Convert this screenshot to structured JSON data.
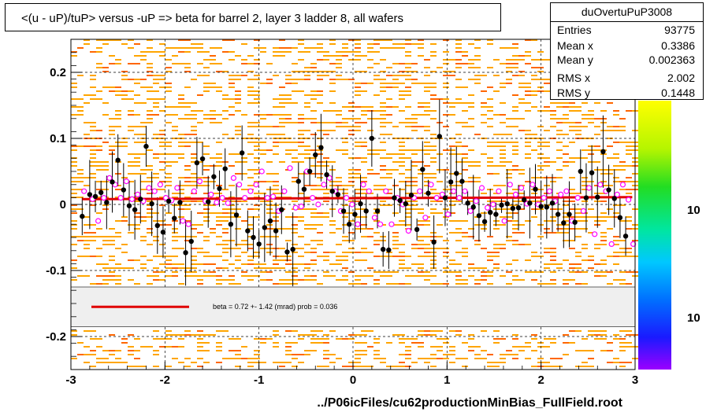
{
  "title": "<(u - uP)/tuP> versus  -uP => beta for barrel 2, layer 3 ladder 8, all wafers",
  "stats": {
    "name": "duOvertuPuP3008",
    "rows": [
      {
        "label": "Entries",
        "value": "93775"
      },
      {
        "label": "Mean x",
        "value": "0.3386"
      },
      {
        "label": "Mean y",
        "value": "0.002363"
      },
      {
        "label": "RMS x",
        "value": "2.002"
      },
      {
        "label": "RMS y",
        "value": "0.1448"
      }
    ]
  },
  "colors": {
    "fit_line": "#e00000",
    "profile_points": "#000000",
    "markers_open": "#ff00ff",
    "histogram_fill_1": "#ffa500",
    "histogram_fill_2": "#ff6600",
    "legend_band": "#efefef"
  },
  "chart_data": {
    "type": "scatter",
    "xlabel": "../P06icFiles/cu62productionMinBias_FullField.root",
    "ylabel": "",
    "xlim": [
      -3,
      3
    ],
    "ylim": [
      -0.25,
      0.25
    ],
    "x_ticks": [
      -3,
      -2,
      -1,
      0,
      1,
      2,
      3
    ],
    "x_tick_labels": [
      "-3",
      "-2",
      "-1",
      "0",
      "1",
      "2",
      "3"
    ],
    "y_ticks": [
      -0.2,
      -0.1,
      0,
      0.1,
      0.2
    ],
    "y_tick_labels": [
      "-0.2",
      "-0.1",
      "0",
      "0.1",
      "0.2"
    ],
    "grid": true,
    "fit": {
      "label": "beta =    0.72 +-  1.42 (mrad) prob = 0.036",
      "x": [
        -2.88,
        2.97
      ],
      "y": [
        0.008,
        0.011
      ]
    },
    "legend_band_y": [
      -0.185,
      -0.125
    ],
    "palette_labels": [
      "10",
      "10"
    ],
    "series": [
      {
        "marker": "filled-circle",
        "x": [
          -2.88,
          -2.8,
          -2.74,
          -2.68,
          -2.62,
          -2.56,
          -2.5,
          -2.44,
          -2.38,
          -2.32,
          -2.26,
          -2.2,
          -2.14,
          -2.08,
          -2.02,
          -1.96,
          -1.9,
          -1.84,
          -1.78,
          -1.72,
          -1.66,
          -1.6,
          -1.54,
          -1.48,
          -1.42,
          -1.36,
          -1.3,
          -1.24,
          -1.18,
          -1.12,
          -1.06,
          -1.0,
          -0.94,
          -0.88,
          -0.82,
          -0.76,
          -0.7,
          -0.64,
          -0.58,
          -0.52,
          -0.46,
          -0.4,
          -0.34,
          -0.28,
          -0.22,
          -0.16,
          -0.1,
          -0.04,
          0.02,
          0.08,
          0.14,
          0.2,
          0.26,
          0.32,
          0.38,
          0.44,
          0.5,
          0.56,
          0.62,
          0.68,
          0.74,
          0.8,
          0.86,
          0.92,
          0.98,
          1.04,
          1.1,
          1.16,
          1.22,
          1.28,
          1.34,
          1.4,
          1.46,
          1.52,
          1.58,
          1.64,
          1.7,
          1.76,
          1.82,
          1.88,
          1.94,
          2.0,
          2.06,
          2.12,
          2.18,
          2.24,
          2.3,
          2.36,
          2.42,
          2.48,
          2.54,
          2.6,
          2.66,
          2.72,
          2.78,
          2.84,
          2.9
        ],
        "y": [
          -0.018,
          0.015,
          0.012,
          0.018,
          0.003,
          0.034,
          0.067,
          0.022,
          -0.002,
          -0.008,
          0.008,
          0.088,
          0.001,
          -0.032,
          -0.042,
          0.005,
          -0.021,
          0.003,
          -0.073,
          -0.056,
          0.063,
          0.069,
          0.004,
          0.042,
          0.024,
          0.054,
          -0.03,
          -0.016,
          0.078,
          -0.04,
          -0.05,
          -0.06,
          -0.035,
          -0.025,
          -0.04,
          -0.008,
          -0.072,
          -0.068,
          0.035,
          0.023,
          0.05,
          0.075,
          0.086,
          0.045,
          0.02,
          0.015,
          -0.01,
          -0.03,
          -0.015,
          0.001,
          -0.01,
          0.1,
          -0.01,
          -0.068,
          -0.069,
          0.01,
          0.006,
          0.001,
          0.014,
          -0.038,
          0.053,
          0.017,
          -0.057,
          0.103,
          0.01,
          0.034,
          0.047,
          0.035,
          0.002,
          -0.004,
          -0.017,
          -0.026,
          -0.012,
          -0.015,
          -0.001,
          0.001,
          -0.006,
          -0.005,
          0.007,
          0.002,
          0.023,
          -0.003,
          -0.004,
          0.002,
          -0.015,
          -0.028,
          -0.015,
          -0.027,
          0.05,
          0.01,
          0.048,
          0.011,
          0.08,
          0.022,
          0.009,
          -0.02,
          -0.048
        ]
      },
      {
        "marker": "open-circle",
        "x": [
          -2.86,
          -2.77,
          -2.71,
          -2.65,
          -2.59,
          -2.53,
          -2.47,
          -2.41,
          -2.35,
          -2.29,
          -2.23,
          -2.17,
          -2.11,
          -2.05,
          -1.99,
          -1.93,
          -1.87,
          -1.81,
          -1.75,
          -1.69,
          -1.63,
          -1.57,
          -1.51,
          -1.45,
          -1.39,
          -1.33,
          -1.27,
          -1.21,
          -1.15,
          -1.09,
          -1.03,
          -0.97,
          -0.91,
          -0.85,
          -0.79,
          -0.73,
          -0.67,
          -0.61,
          -0.55,
          -0.49,
          -0.43,
          -0.37,
          -0.31,
          -0.25,
          -0.19,
          -0.13,
          -0.07,
          -0.01,
          0.05,
          0.11,
          0.17,
          0.23,
          0.29,
          0.35,
          0.41,
          0.47,
          0.53,
          0.59,
          0.65,
          0.71,
          0.77,
          0.83,
          0.89,
          0.95,
          1.01,
          1.07,
          1.13,
          1.19,
          1.25,
          1.31,
          1.37,
          1.43,
          1.49,
          1.55,
          1.61,
          1.67,
          1.73,
          1.79,
          1.85,
          1.91,
          1.97,
          2.03,
          2.09,
          2.15,
          2.21,
          2.27,
          2.33,
          2.39,
          2.45,
          2.51,
          2.57,
          2.63,
          2.69,
          2.75,
          2.81,
          2.87,
          2.93,
          2.98
        ],
        "y": [
          0.02,
          0.008,
          -0.025,
          0.01,
          0.04,
          0.03,
          0.01,
          0.035,
          0.008,
          0.015,
          0.005,
          0.025,
          0.02,
          0.03,
          0.01,
          0.006,
          0.025,
          -0.025,
          -0.03,
          0.02,
          0.035,
          0.005,
          0.015,
          0.003,
          0.01,
          0.002,
          0.04,
          0.03,
          0.01,
          0.02,
          0.03,
          0.05,
          0.01,
          0.012,
          -0.01,
          0.02,
          0.055,
          -0.005,
          -0.003,
          0.05,
          0.01,
          0.0,
          0.03,
          0.04,
          0.02,
          -0.01,
          0.01,
          0.0,
          -0.03,
          0.03,
          0.02,
          -0.02,
          -0.03,
          0.02,
          -0.03,
          0.01,
          0.0,
          -0.04,
          0.01,
          0.02,
          -0.02,
          0.03,
          0.01,
          0.015,
          -0.015,
          0.02,
          0.01,
          0.02,
          -0.01,
          0.005,
          0.025,
          -0.005,
          0.0,
          0.02,
          -0.025,
          0.03,
          0.015,
          0.025,
          0.001,
          0.03,
          0.0,
          0.01,
          0.02,
          0.005,
          0.015,
          0.02,
          -0.025,
          0.01,
          -0.01,
          0.025,
          -0.045,
          0.03,
          0.02,
          -0.06,
          0.015,
          0.03,
          0.007,
          -0.06
        ]
      }
    ]
  }
}
